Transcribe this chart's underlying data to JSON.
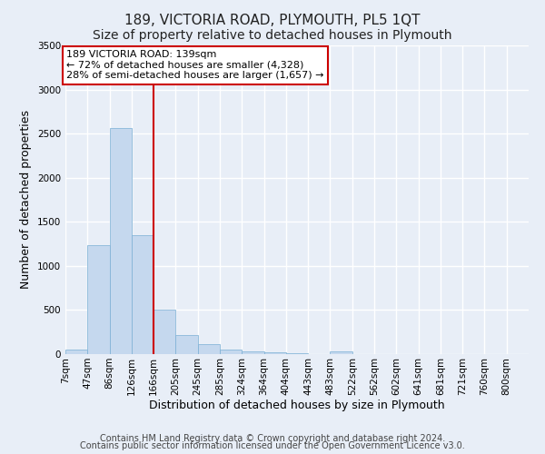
{
  "title": "189, VICTORIA ROAD, PLYMOUTH, PL5 1QT",
  "subtitle": "Size of property relative to detached houses in Plymouth",
  "xlabel": "Distribution of detached houses by size in Plymouth",
  "ylabel": "Number of detached properties",
  "bar_labels": [
    "7sqm",
    "47sqm",
    "86sqm",
    "126sqm",
    "166sqm",
    "205sqm",
    "245sqm",
    "285sqm",
    "324sqm",
    "364sqm",
    "404sqm",
    "443sqm",
    "483sqm",
    "522sqm",
    "562sqm",
    "602sqm",
    "641sqm",
    "681sqm",
    "721sqm",
    "760sqm",
    "800sqm"
  ],
  "bar_values": [
    55,
    1240,
    2560,
    1350,
    500,
    215,
    115,
    55,
    30,
    20,
    10,
    5,
    30,
    0,
    0,
    0,
    0,
    0,
    0,
    0,
    0
  ],
  "bar_color": "#c5d8ee",
  "bar_edge_color": "#7aafd4",
  "annotation_text": "189 VICTORIA ROAD: 139sqm\n← 72% of detached houses are smaller (4,328)\n28% of semi-detached houses are larger (1,657) →",
  "annotation_box_color": "#ffffff",
  "annotation_box_edge_color": "#cc0000",
  "vline_color": "#cc0000",
  "ylim": [
    0,
    3500
  ],
  "bin_width": 39,
  "footer_line1": "Contains HM Land Registry data © Crown copyright and database right 2024.",
  "footer_line2": "Contains public sector information licensed under the Open Government Licence v3.0.",
  "background_color": "#e8eef7",
  "plot_bg_color": "#e8eef7",
  "grid_color": "#ffffff",
  "title_fontsize": 11,
  "subtitle_fontsize": 10,
  "axis_label_fontsize": 9,
  "tick_fontsize": 7.5,
  "footer_fontsize": 7
}
